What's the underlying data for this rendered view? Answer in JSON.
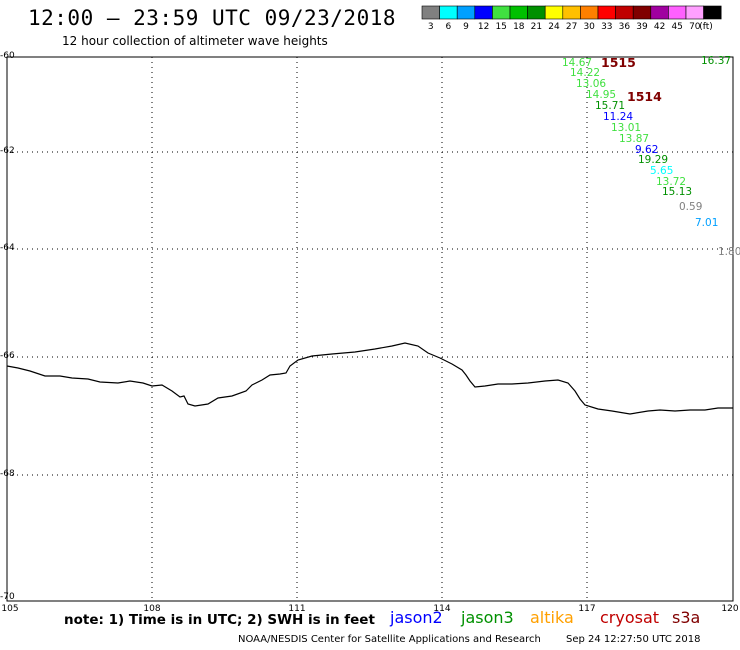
{
  "header": {
    "title": "12:00 – 23:59 UTC 09/23/2018",
    "subtitle": "12 hour collection of altimeter wave heights"
  },
  "legend": {
    "unit": "(ft)",
    "items": [
      {
        "label": "3",
        "color": "#808080"
      },
      {
        "label": "6",
        "color": "#00ffff"
      },
      {
        "label": "9",
        "color": "#00a0ff"
      },
      {
        "label": "12",
        "color": "#0000ff"
      },
      {
        "label": "15",
        "color": "#40e040"
      },
      {
        "label": "18",
        "color": "#00c000"
      },
      {
        "label": "21",
        "color": "#009000"
      },
      {
        "label": "24",
        "color": "#ffff00"
      },
      {
        "label": "27",
        "color": "#ffc000"
      },
      {
        "label": "30",
        "color": "#ff8000"
      },
      {
        "label": "33",
        "color": "#ff0000"
      },
      {
        "label": "36",
        "color": "#c00000"
      },
      {
        "label": "39",
        "color": "#800000"
      },
      {
        "label": "42",
        "color": "#a000a0"
      },
      {
        "label": "45",
        "color": "#ff60ff"
      },
      {
        "label": "70",
        "color": "#ffa0ff"
      },
      {
        "label": "",
        "color": "#000000"
      }
    ]
  },
  "map": {
    "lon_ticks": [
      "105",
      "108",
      "111",
      "114",
      "117",
      "120"
    ],
    "lat_ticks": [
      "-60",
      "-62",
      "-64",
      "-66",
      "-68",
      "-70"
    ]
  },
  "wave_labels": [
    {
      "text": "14.67",
      "color": "#40e040"
    },
    {
      "text": "1515",
      "color": "#800000"
    },
    {
      "text": "16.37",
      "color": "#009000"
    },
    {
      "text": "14.22",
      "color": "#40e040"
    },
    {
      "text": "13.06",
      "color": "#40e040"
    },
    {
      "text": "14.95",
      "color": "#40e040"
    },
    {
      "text": "1514",
      "color": "#800000"
    },
    {
      "text": "15.71",
      "color": "#009000"
    },
    {
      "text": "11.24",
      "color": "#0000ff"
    },
    {
      "text": "13.01",
      "color": "#40e040"
    },
    {
      "text": "13.87",
      "color": "#40e040"
    },
    {
      "text": "9.62",
      "color": "#0000ff"
    },
    {
      "text": "19.29",
      "color": "#009000"
    },
    {
      "text": "5.65",
      "color": "#00ffff"
    },
    {
      "text": "13.72",
      "color": "#40e040"
    },
    {
      "text": "15.13",
      "color": "#009000"
    },
    {
      "text": "0.59",
      "color": "#808080"
    },
    {
      "text": "7.01",
      "color": "#00a0ff"
    },
    {
      "text": "1.80",
      "color": "#808080"
    }
  ],
  "footer": {
    "note": "note: 1) Time is in UTC; 2) SWH is in feet",
    "satellites": [
      {
        "name": "jason2",
        "color": "#0000ff"
      },
      {
        "name": "jason3",
        "color": "#009000"
      },
      {
        "name": "altika",
        "color": "#ffa000"
      },
      {
        "name": "cryosat",
        "color": "#c00000"
      },
      {
        "name": "s3a",
        "color": "#800000"
      }
    ],
    "credit": "NOAA/NESDIS Center for Satellite Applications and Research",
    "timestamp": "Sep 24 12:27:50 UTC 2018"
  }
}
